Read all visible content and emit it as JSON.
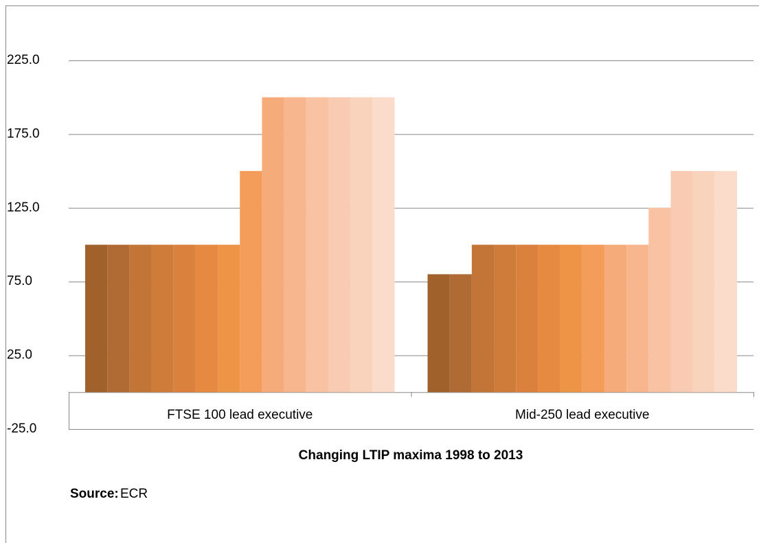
{
  "chart_data": {
    "type": "bar",
    "title": "Changing LTIP maxima 1998 to 2013",
    "source_label": "Source:",
    "source": "ECR",
    "categories": [
      "FTSE 100 lead executive",
      "Mid-250 lead executive"
    ],
    "series": [
      {
        "color": "#a0612b",
        "values": [
          100,
          80
        ]
      },
      {
        "color": "#b06a33",
        "values": [
          100,
          80
        ]
      },
      {
        "color": "#c27536",
        "values": [
          100,
          100
        ]
      },
      {
        "color": "#cf7c3a",
        "values": [
          100,
          100
        ]
      },
      {
        "color": "#da823d",
        "values": [
          100,
          100
        ]
      },
      {
        "color": "#e58a40",
        "values": [
          100,
          100
        ]
      },
      {
        "color": "#ee9446",
        "values": [
          100,
          100
        ]
      },
      {
        "color": "#f49c59",
        "values": [
          150,
          100
        ]
      },
      {
        "color": "#f6ab7a",
        "values": [
          200,
          100
        ]
      },
      {
        "color": "#f7b68e",
        "values": [
          200,
          100
        ]
      },
      {
        "color": "#f8c2a3",
        "values": [
          200,
          125
        ]
      },
      {
        "color": "#f9cbb2",
        "values": [
          200,
          150
        ]
      },
      {
        "color": "#fad3bd",
        "values": [
          200,
          150
        ]
      },
      {
        "color": "#fbdcca",
        "values": [
          200,
          150
        ]
      }
    ],
    "ylim": [
      -25,
      225
    ],
    "yticks": [
      {
        "value": -25,
        "label": "-25.0"
      },
      {
        "value": 25,
        "label": "25.0"
      },
      {
        "value": 75,
        "label": "75.0"
      },
      {
        "value": 125,
        "label": "125.0"
      },
      {
        "value": 175,
        "label": "175.0"
      },
      {
        "value": 225,
        "label": "225.0"
      }
    ],
    "grid": true
  }
}
